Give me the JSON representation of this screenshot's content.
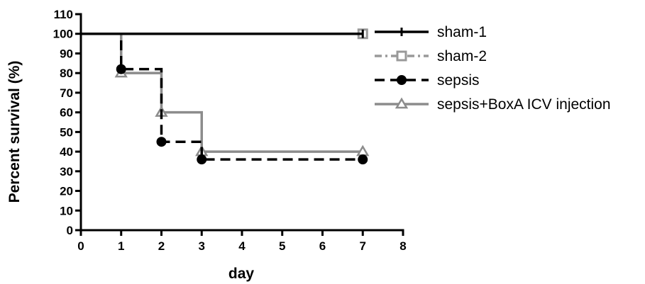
{
  "chart_data": {
    "type": "line",
    "subtype": "step",
    "title": "",
    "xlabel": "day",
    "ylabel": "Percent survival  (%)",
    "xlim": [
      0,
      8
    ],
    "ylim": [
      0,
      110
    ],
    "xticks": [
      0,
      1,
      2,
      3,
      4,
      5,
      6,
      7,
      8
    ],
    "yticks": [
      0,
      10,
      20,
      30,
      40,
      50,
      60,
      70,
      80,
      90,
      100,
      110
    ],
    "grid": false,
    "legend_position": "right",
    "series": [
      {
        "name": "sham-1",
        "color": "#000000",
        "line_style": "solid",
        "marker": "tick",
        "x": [
          0,
          7
        ],
        "y": [
          100,
          100
        ]
      },
      {
        "name": "sham-2",
        "color": "#999999",
        "line_style": "dash-dot",
        "marker": "square",
        "x": [
          0,
          7
        ],
        "y": [
          100,
          100
        ]
      },
      {
        "name": "sepsis",
        "color": "#000000",
        "line_style": "dashed",
        "marker": "circle",
        "x": [
          0,
          1,
          2,
          3,
          7
        ],
        "y": [
          100,
          82,
          45,
          36,
          36
        ]
      },
      {
        "name": "sepsis+BoxA ICV injection",
        "color": "#8c8c8c",
        "line_style": "solid",
        "marker": "triangle",
        "x": [
          0,
          1,
          2,
          3,
          7
        ],
        "y": [
          100,
          80,
          60,
          40,
          40
        ]
      }
    ]
  }
}
